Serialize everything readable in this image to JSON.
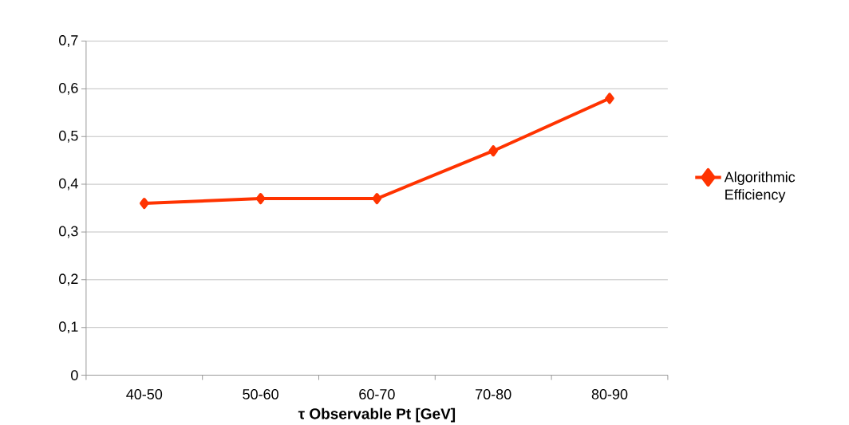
{
  "chart_data": {
    "type": "line",
    "xlabel": "τ Observable Pt [GeV]",
    "categories": [
      "40-50",
      "50-60",
      "60-70",
      "70-80",
      "80-90"
    ],
    "series": [
      {
        "name": "Algorithmic Efficiency",
        "color": "#ff3300",
        "values": [
          0.36,
          0.37,
          0.37,
          0.47,
          0.58
        ]
      }
    ],
    "ylim": [
      0,
      0.7
    ],
    "yticks": [
      0,
      {
        "value": 0.1,
        "label": "0,1"
      },
      {
        "value": 0.2,
        "label": "0,2"
      },
      {
        "value": 0.3,
        "label": "0,3"
      },
      {
        "value": 0.4,
        "label": "0,4"
      },
      {
        "value": 0.5,
        "label": "0,5"
      },
      {
        "value": 0.6,
        "label": "0,6"
      },
      {
        "value": 0.7,
        "label": "0,7"
      }
    ],
    "grid": "y",
    "legend": "right",
    "marker": "diamond",
    "line_style": "solid"
  }
}
